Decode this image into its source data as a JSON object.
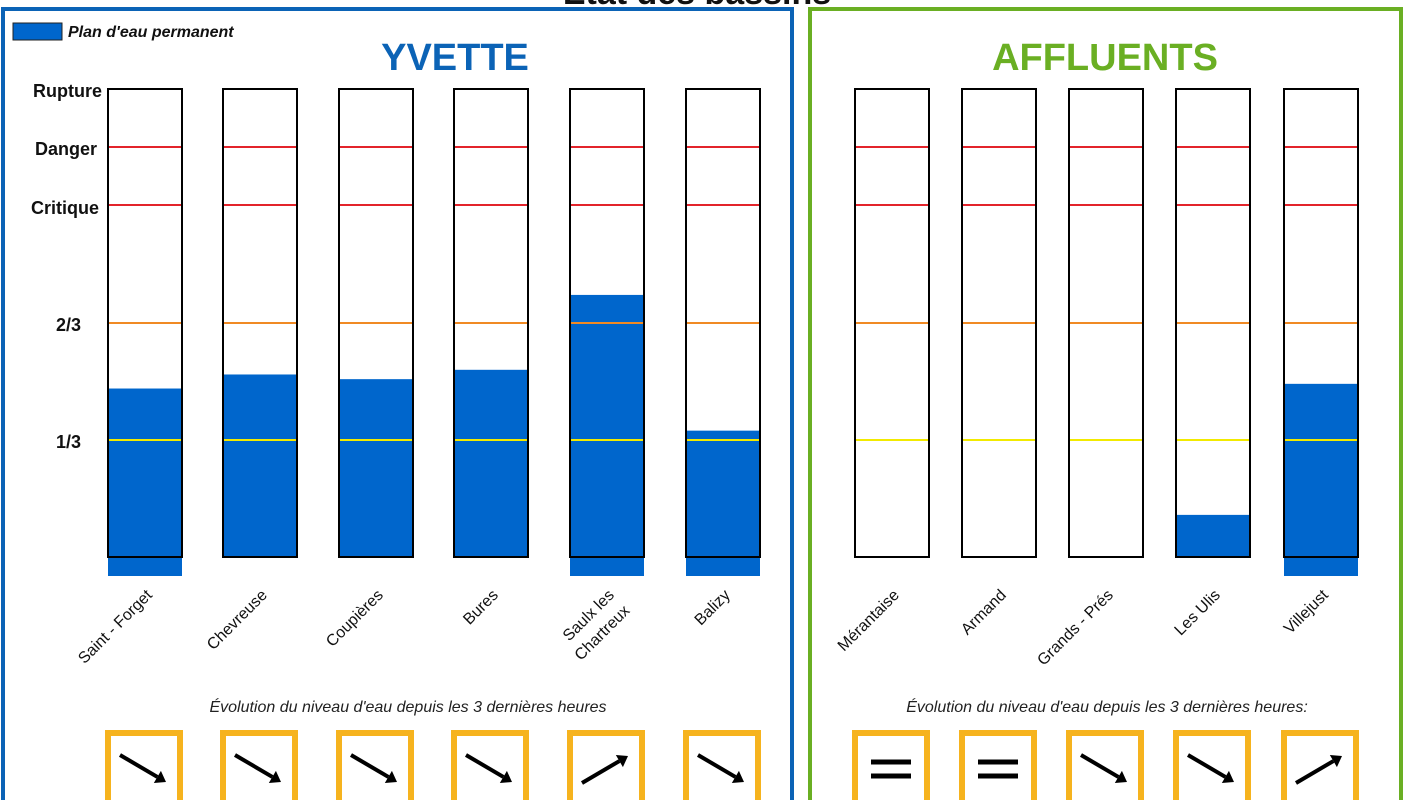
{
  "page": {
    "title": "État des bassins"
  },
  "legend": {
    "label": "Plan d'eau permanent",
    "color": "#0066cc"
  },
  "colors": {
    "water": "#0066cc",
    "yvette_frame": "#0b63b6",
    "affluents_frame": "#6aaf23",
    "arrow_box": "#f6b31e",
    "line_red": "#e3242b",
    "line_orange": "#f08a24",
    "line_yellow": "#f2ea00"
  },
  "levels": [
    {
      "name": "Rupture",
      "key": "rupture"
    },
    {
      "name": "Danger",
      "key": "danger"
    },
    {
      "name": "Critique",
      "key": "critique"
    },
    {
      "name": "2/3",
      "key": "two-thirds"
    },
    {
      "name": "1/3",
      "key": "one-third"
    }
  ],
  "groups": [
    {
      "key": "yvette",
      "title": "YVETTE",
      "evolution_caption": "Évolution du niveau d'eau depuis les 3 dernières heures",
      "basins": [
        {
          "name": "Saint - Forget",
          "name_lines": [
            "Saint - Forget"
          ],
          "fill_pct": 36,
          "trend": "down",
          "permanent": true
        },
        {
          "name": "Chevreuse",
          "name_lines": [
            "Chevreuse"
          ],
          "fill_pct": 39,
          "trend": "down",
          "permanent": false
        },
        {
          "name": "Coupières",
          "name_lines": [
            "Coupières"
          ],
          "fill_pct": 38,
          "trend": "down",
          "permanent": false
        },
        {
          "name": "Bures",
          "name_lines": [
            "Bures"
          ],
          "fill_pct": 40,
          "trend": "down",
          "permanent": false
        },
        {
          "name": "Saulx les Chartreux",
          "name_lines": [
            "Saulx les",
            "Chartreux"
          ],
          "fill_pct": 56,
          "trend": "up",
          "permanent": true
        },
        {
          "name": "Balizy",
          "name_lines": [
            "Balizy"
          ],
          "fill_pct": 27,
          "trend": "down",
          "permanent": true
        }
      ]
    },
    {
      "key": "affluents",
      "title": "AFFLUENTS",
      "evolution_caption": "Évolution du niveau d'eau depuis les 3 dernières heures:",
      "basins": [
        {
          "name": "Mérantaise",
          "name_lines": [
            "Mérantaise"
          ],
          "fill_pct": 0,
          "trend": "stable",
          "permanent": false
        },
        {
          "name": "Armand",
          "name_lines": [
            "Armand"
          ],
          "fill_pct": 0,
          "trend": "stable",
          "permanent": false
        },
        {
          "name": "Grands - Prés",
          "name_lines": [
            "Grands - Prés"
          ],
          "fill_pct": 0,
          "trend": "down",
          "permanent": false
        },
        {
          "name": "Les Ulis",
          "name_lines": [
            "Les Ulis"
          ],
          "fill_pct": 9,
          "trend": "down",
          "permanent": false
        },
        {
          "name": "Villejust",
          "name_lines": [
            "Villejust"
          ],
          "fill_pct": 37,
          "trend": "up",
          "permanent": true
        }
      ]
    }
  ]
}
